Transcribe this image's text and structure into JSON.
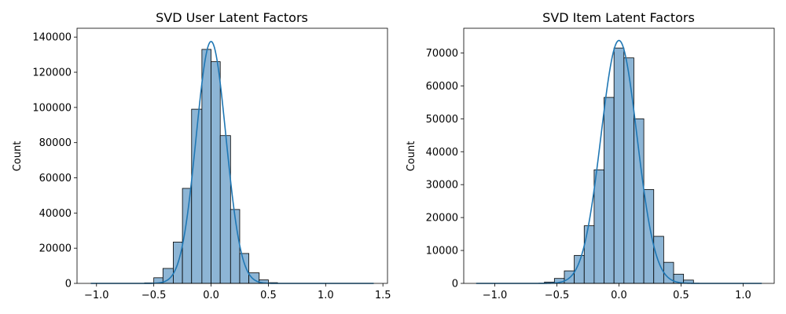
{
  "chart_data": [
    {
      "type": "bar",
      "title": "SVD User Latent Factors",
      "xlabel": "",
      "ylabel": "Count",
      "xlim": [
        -1.17,
        1.54
      ],
      "ylim": [
        0,
        145000
      ],
      "xticks": [
        -1.0,
        -0.5,
        0.0,
        0.5,
        1.0,
        1.5
      ],
      "xtick_labels": [
        "−1.0",
        "−0.5",
        "0.0",
        "0.5",
        "1.0",
        "1.5"
      ],
      "yticks": [
        0,
        20000,
        40000,
        60000,
        80000,
        100000,
        120000,
        140000
      ],
      "ytick_labels": [
        "0",
        "20000",
        "40000",
        "60000",
        "80000",
        "100000",
        "120000",
        "140000"
      ],
      "bins": [
        {
          "x0": -0.58,
          "x1": -0.5,
          "count": 300
        },
        {
          "x0": -0.5,
          "x1": -0.42,
          "count": 3200
        },
        {
          "x0": -0.42,
          "x1": -0.33,
          "count": 8500
        },
        {
          "x0": -0.33,
          "x1": -0.25,
          "count": 23500
        },
        {
          "x0": -0.25,
          "x1": -0.17,
          "count": 54000
        },
        {
          "x0": -0.17,
          "x1": -0.08,
          "count": 99000
        },
        {
          "x0": -0.08,
          "x1": 0.0,
          "count": 133000
        },
        {
          "x0": 0.0,
          "x1": 0.08,
          "count": 126000
        },
        {
          "x0": 0.08,
          "x1": 0.17,
          "count": 84000
        },
        {
          "x0": 0.17,
          "x1": 0.25,
          "count": 42000
        },
        {
          "x0": 0.25,
          "x1": 0.33,
          "count": 17000
        },
        {
          "x0": 0.33,
          "x1": 0.42,
          "count": 6000
        },
        {
          "x0": 0.42,
          "x1": 0.5,
          "count": 2000
        },
        {
          "x0": 0.5,
          "x1": 0.58,
          "count": 400
        }
      ],
      "kde": {
        "mean": 0.0,
        "std": 0.13,
        "peak": 137500,
        "range": [
          -1.05,
          1.42
        ]
      },
      "colors": {
        "bar": "#8db5d5",
        "edge": "#000000",
        "kde": "#1f77b4"
      }
    },
    {
      "type": "bar",
      "title": "SVD Item Latent Factors",
      "xlabel": "",
      "ylabel": "Count",
      "xlim": [
        -1.25,
        1.25
      ],
      "ylim": [
        0,
        77500
      ],
      "xticks": [
        -1.0,
        -0.5,
        0.0,
        0.5,
        1.0
      ],
      "xtick_labels": [
        "−1.0",
        "−0.5",
        "0.0",
        "0.5",
        "1.0"
      ],
      "yticks": [
        0,
        10000,
        20000,
        30000,
        40000,
        50000,
        60000,
        70000
      ],
      "ytick_labels": [
        "0",
        "10000",
        "20000",
        "30000",
        "40000",
        "50000",
        "60000",
        "70000"
      ],
      "bins": [
        {
          "x0": -0.6,
          "x1": -0.52,
          "count": 400
        },
        {
          "x0": -0.52,
          "x1": -0.44,
          "count": 1500
        },
        {
          "x0": -0.44,
          "x1": -0.36,
          "count": 3800
        },
        {
          "x0": -0.36,
          "x1": -0.28,
          "count": 8500
        },
        {
          "x0": -0.28,
          "x1": -0.2,
          "count": 17500
        },
        {
          "x0": -0.2,
          "x1": -0.12,
          "count": 34500
        },
        {
          "x0": -0.12,
          "x1": -0.04,
          "count": 56500
        },
        {
          "x0": -0.04,
          "x1": 0.04,
          "count": 71500
        },
        {
          "x0": 0.04,
          "x1": 0.12,
          "count": 68500
        },
        {
          "x0": 0.12,
          "x1": 0.2,
          "count": 50000
        },
        {
          "x0": 0.2,
          "x1": 0.28,
          "count": 28500
        },
        {
          "x0": 0.28,
          "x1": 0.36,
          "count": 14300
        },
        {
          "x0": 0.36,
          "x1": 0.44,
          "count": 6400
        },
        {
          "x0": 0.44,
          "x1": 0.52,
          "count": 2800
        },
        {
          "x0": 0.52,
          "x1": 0.6,
          "count": 1000
        }
      ],
      "kde": {
        "mean": 0.0,
        "std": 0.145,
        "peak": 73800,
        "range": [
          -1.15,
          1.15
        ]
      },
      "colors": {
        "bar": "#8db5d5",
        "edge": "#000000",
        "kde": "#1f77b4"
      }
    }
  ]
}
